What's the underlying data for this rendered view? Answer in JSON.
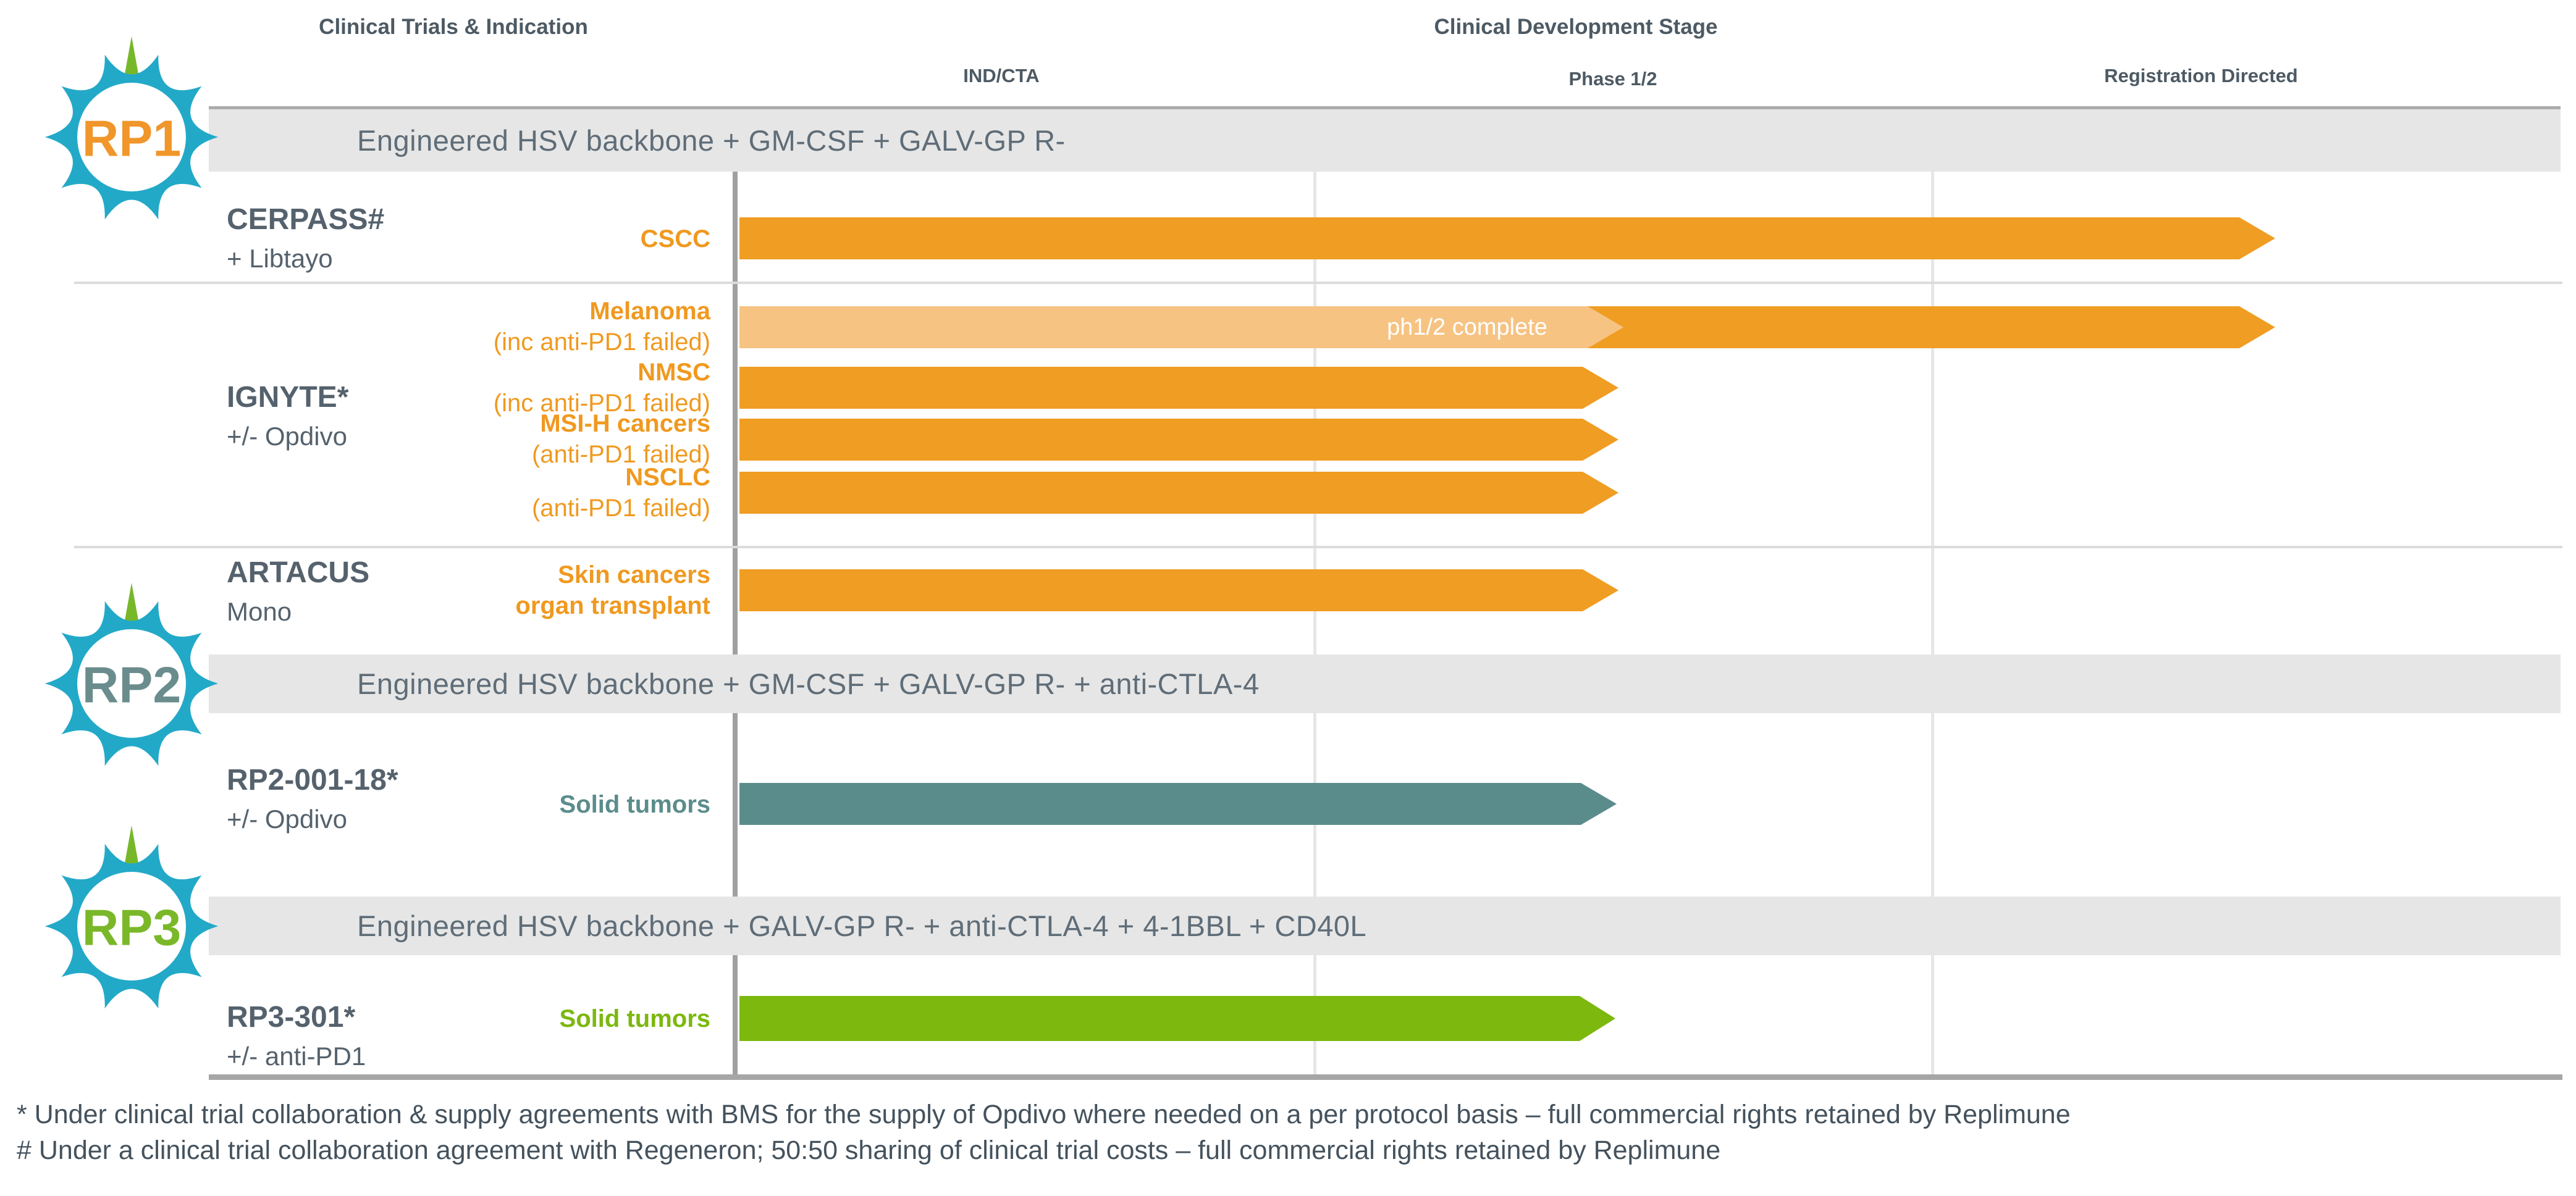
{
  "title_left": "Clinical Trials & Indication",
  "title_right": "Clinical Development Stage",
  "stage_columns": [
    "IND/CTA",
    "Phase 1/2",
    "Registration Directed"
  ],
  "programs": [
    {
      "logo": "RP1",
      "band": "Engineered HSV backbone + GM-CSF + GALV-GP R-",
      "trials": [
        {
          "name": "CERPASS#",
          "subtitle": "+ Libtayo",
          "indications": [
            {
              "label": "CSCC",
              "sublabel": ""
            }
          ]
        },
        {
          "name": "IGNYTE*",
          "subtitle": "+/- Opdivo",
          "indications": [
            {
              "label": "Melanoma",
              "sublabel": "(inc anti-PD1 failed)"
            },
            {
              "label": "NMSC",
              "sublabel": "(inc anti-PD1 failed)"
            },
            {
              "label": "MSI-H cancers",
              "sublabel": "(anti-PD1 failed)"
            },
            {
              "label": "NSCLC",
              "sublabel": "(anti-PD1 failed)"
            }
          ]
        },
        {
          "name": "ARTACUS",
          "subtitle": "Mono",
          "indications": [
            {
              "label": "Skin cancers",
              "sublabel": "organ transplant"
            }
          ]
        }
      ]
    },
    {
      "logo": "RP2",
      "band": "Engineered HSV backbone + GM-CSF + GALV-GP R- + anti-CTLA-4",
      "trials": [
        {
          "name": "RP2-001-18*",
          "subtitle": "+/- Opdivo",
          "indications": [
            {
              "label": "Solid tumors",
              "sublabel": ""
            }
          ]
        }
      ]
    },
    {
      "logo": "RP3",
      "band": "Engineered HSV backbone + GALV-GP R- + anti-CTLA-4 + 4-1BBL + CD40L",
      "trials": [
        {
          "name": "RP3-301*",
          "subtitle": "+/- anti-PD1",
          "indications": [
            {
              "label": "Solid tumors",
              "sublabel": ""
            }
          ]
        }
      ]
    }
  ],
  "bar_annotations": {
    "ph12_complete": "ph1/2 complete"
  },
  "footnotes": [
    "* Under clinical trial collaboration & supply agreements with BMS for the supply of Opdivo where needed on a per protocol basis – full commercial rights retained by Replimune",
    "# Under a clinical trial collaboration agreement with Regeneron; 50:50 sharing of clinical trial costs – full commercial rights retained by Replimune"
  ],
  "colors": {
    "orange": "#F09D23",
    "light_orange": "#F6C383",
    "teal": "#5B8C8C",
    "green": "#7CB80E",
    "logo_teal": "#23A9C8",
    "logo_green": "#76B82A",
    "rp1_text": "#F0962A",
    "rp2_text": "#6A8C8C",
    "rp3_text": "#7AB829",
    "band_bg": "#E6E6E6",
    "heading_text": "#4D5A64",
    "trial_text": "#55626D",
    "indication_text": "#F0991F",
    "footnote_text": "#44525D"
  },
  "chart_data": {
    "type": "bar",
    "orientation": "horizontal",
    "title": "Replimune clinical pipeline by clinical development stage",
    "x_axis": {
      "label": "Clinical Development Stage",
      "stages": [
        "IND/CTA",
        "Phase 1/2",
        "Registration Directed"
      ],
      "range_stage_units": [
        0,
        3
      ]
    },
    "legend": "none",
    "grid": "vertical stage boundaries",
    "bars": [
      {
        "program": "RP1",
        "trial": "CERPASS#",
        "combination": "+ Libtayo",
        "indication": "CSCC",
        "start": 0,
        "end": 2.55,
        "color": "#F09D23"
      },
      {
        "program": "RP1",
        "trial": "IGNYTE*",
        "combination": "+/- Opdivo",
        "indication": "Melanoma (inc anti-PD1 failed)",
        "start": 0,
        "end": 2.55,
        "segments": [
          {
            "from": 0,
            "to": 1.47,
            "color": "#F6C383",
            "label": "ph1/2 complete"
          },
          {
            "from": 1.47,
            "to": 2.55,
            "color": "#F09D23",
            "label": ""
          }
        ]
      },
      {
        "program": "RP1",
        "trial": "IGNYTE*",
        "combination": "+/- Opdivo",
        "indication": "NMSC (inc anti-PD1 failed)",
        "start": 0,
        "end": 1.47,
        "color": "#F09D23"
      },
      {
        "program": "RP1",
        "trial": "IGNYTE*",
        "combination": "+/- Opdivo",
        "indication": "MSI-H cancers (anti-PD1 failed)",
        "start": 0,
        "end": 1.47,
        "color": "#F09D23"
      },
      {
        "program": "RP1",
        "trial": "IGNYTE*",
        "combination": "+/- Opdivo",
        "indication": "NSCLC (anti-PD1 failed)",
        "start": 0,
        "end": 1.47,
        "color": "#F09D23"
      },
      {
        "program": "RP1",
        "trial": "ARTACUS",
        "combination": "Mono",
        "indication": "Skin cancers organ transplant",
        "start": 0,
        "end": 1.47,
        "color": "#F09D23"
      },
      {
        "program": "RP2",
        "trial": "RP2-001-18*",
        "combination": "+/- Opdivo",
        "indication": "Solid tumors",
        "start": 0,
        "end": 1.47,
        "color": "#5B8C8C"
      },
      {
        "program": "RP3",
        "trial": "RP3-301*",
        "combination": "+/- anti-PD1",
        "indication": "Solid tumors",
        "start": 0,
        "end": 1.46,
        "color": "#7CB80E"
      }
    ]
  }
}
